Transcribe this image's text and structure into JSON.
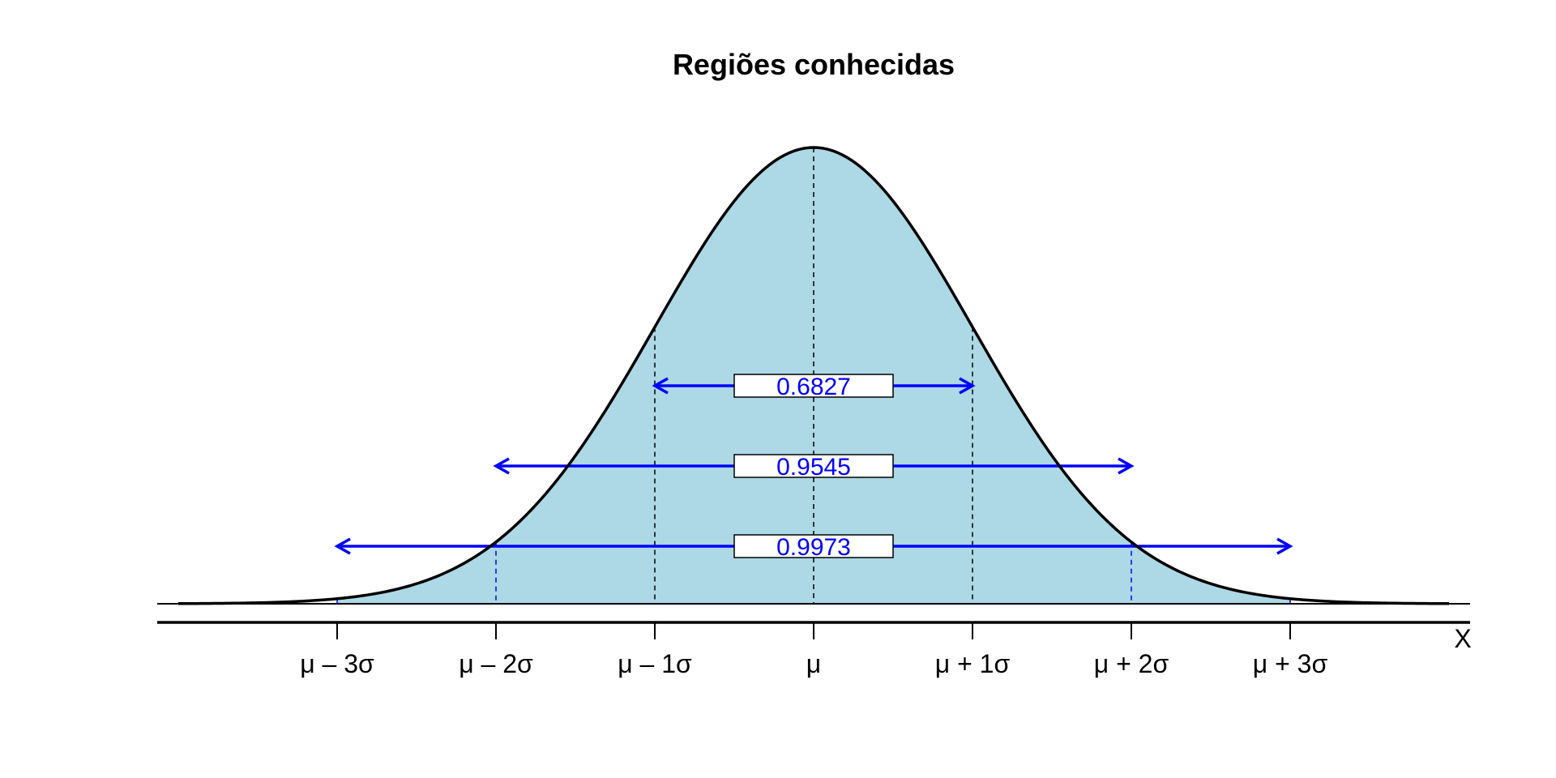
{
  "chart_data": {
    "type": "area",
    "title": "Regiões conhecidas",
    "xlabel": "X",
    "ylabel": "",
    "distribution": "normal",
    "xlim": [
      -4,
      4
    ],
    "x_ticks": [
      -3,
      -2,
      -1,
      0,
      1,
      2,
      3
    ],
    "tick_labels": [
      "μ – 3σ",
      "μ – 2σ",
      "μ – 1σ",
      "μ",
      "μ + 1σ",
      "μ + 2σ",
      "μ + 3σ"
    ],
    "shaded_range": [
      -3,
      3
    ],
    "intervals": [
      {
        "from": -1,
        "to": 1,
        "probability": "0.6827"
      },
      {
        "from": -2,
        "to": 2,
        "probability": "0.9545"
      },
      {
        "from": -3,
        "to": 3,
        "probability": "0.9973"
      }
    ],
    "grid": false,
    "colors": {
      "fill": "#add8e6",
      "curve": "#000000",
      "interval": "#0000ff"
    }
  }
}
